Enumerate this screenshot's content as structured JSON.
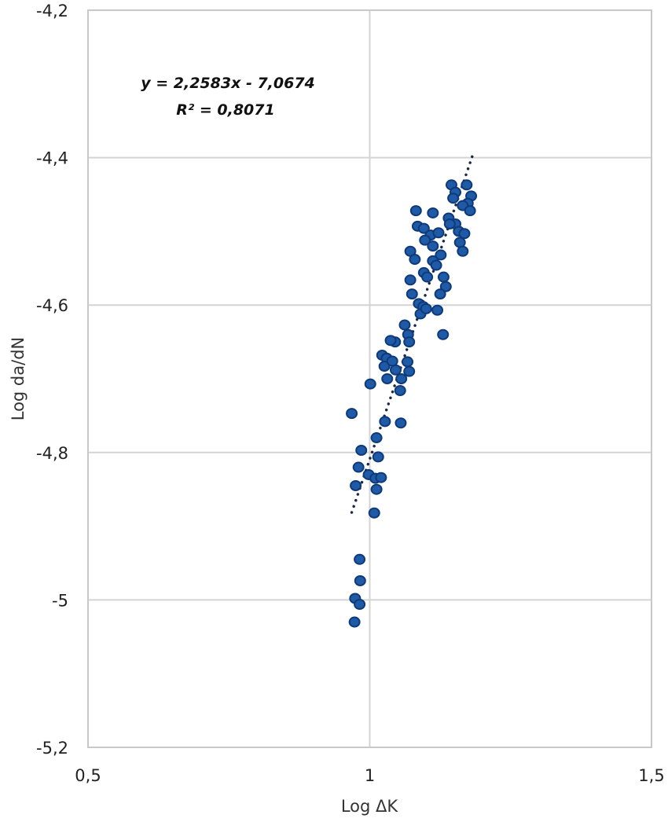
{
  "chart_data": {
    "type": "scatter",
    "title": "",
    "xlabel": "Log ΔK",
    "ylabel": "Log da/dN",
    "xlim": [
      0.5,
      1.5
    ],
    "ylim": [
      -5.2,
      -4.2
    ],
    "x_ticks": [
      0.5,
      1,
      1.5
    ],
    "x_tick_labels": [
      "0,5",
      "1",
      "1,5"
    ],
    "y_ticks": [
      -4.2,
      -4.4,
      -4.6,
      -4.8,
      -5,
      -5.2
    ],
    "y_tick_labels": [
      "-4,2",
      "-4,4",
      "-4,6",
      "-4,8",
      "-5",
      "-5,2"
    ],
    "grid": true,
    "legend": null,
    "marker_color": "#0f3a7a",
    "marker_color_light": "#1f5aa6",
    "trendline": {
      "type": "linear",
      "slope": 2.2583,
      "intercept": -7.0674,
      "r_squared": 0.8071,
      "x_range": [
        0.968,
        1.182
      ],
      "style": "dotted",
      "color": "#1b2a44",
      "equation_label": "y = 2,2583x - 7,0674",
      "r2_label": "R² = 0,8071"
    },
    "series": [
      {
        "name": "Log da/dN",
        "points": [
          [
            1.145,
            -4.437
          ],
          [
            1.152,
            -4.447
          ],
          [
            1.148,
            -4.455
          ],
          [
            1.172,
            -4.437
          ],
          [
            1.18,
            -4.452
          ],
          [
            1.174,
            -4.462
          ],
          [
            1.165,
            -4.465
          ],
          [
            1.178,
            -4.472
          ],
          [
            1.14,
            -4.482
          ],
          [
            1.152,
            -4.49
          ],
          [
            1.158,
            -4.5
          ],
          [
            1.168,
            -4.503
          ],
          [
            1.16,
            -4.515
          ],
          [
            1.165,
            -4.527
          ],
          [
            1.142,
            -4.49
          ],
          [
            1.082,
            -4.472
          ],
          [
            1.112,
            -4.475
          ],
          [
            1.085,
            -4.493
          ],
          [
            1.096,
            -4.496
          ],
          [
            1.108,
            -4.505
          ],
          [
            1.098,
            -4.512
          ],
          [
            1.122,
            -4.502
          ],
          [
            1.112,
            -4.52
          ],
          [
            1.126,
            -4.532
          ],
          [
            1.112,
            -4.54
          ],
          [
            1.118,
            -4.546
          ],
          [
            1.131,
            -4.562
          ],
          [
            1.072,
            -4.527
          ],
          [
            1.08,
            -4.538
          ],
          [
            1.096,
            -4.556
          ],
          [
            1.102,
            -4.562
          ],
          [
            1.135,
            -4.575
          ],
          [
            1.125,
            -4.585
          ],
          [
            1.072,
            -4.566
          ],
          [
            1.075,
            -4.585
          ],
          [
            1.087,
            -4.598
          ],
          [
            1.095,
            -4.602
          ],
          [
            1.09,
            -4.612
          ],
          [
            1.1,
            -4.605
          ],
          [
            1.12,
            -4.607
          ],
          [
            1.13,
            -4.64
          ],
          [
            1.062,
            -4.627
          ],
          [
            1.068,
            -4.64
          ],
          [
            1.07,
            -4.65
          ],
          [
            1.045,
            -4.65
          ],
          [
            1.037,
            -4.648
          ],
          [
            1.022,
            -4.668
          ],
          [
            1.03,
            -4.672
          ],
          [
            1.026,
            -4.683
          ],
          [
            1.04,
            -4.676
          ],
          [
            1.046,
            -4.688
          ],
          [
            1.067,
            -4.677
          ],
          [
            1.07,
            -4.69
          ],
          [
            1.056,
            -4.7
          ],
          [
            1.031,
            -4.7
          ],
          [
            1.054,
            -4.716
          ],
          [
            1.001,
            -4.707
          ],
          [
            1.055,
            -4.76
          ],
          [
            1.027,
            -4.758
          ],
          [
            0.968,
            -4.747
          ],
          [
            1.012,
            -4.78
          ],
          [
            0.985,
            -4.797
          ],
          [
            1.015,
            -4.806
          ],
          [
            0.98,
            -4.82
          ],
          [
            0.998,
            -4.83
          ],
          [
            1.01,
            -4.835
          ],
          [
            1.02,
            -4.834
          ],
          [
            0.975,
            -4.845
          ],
          [
            1.012,
            -4.85
          ],
          [
            1.008,
            -4.882
          ],
          [
            0.982,
            -4.945
          ],
          [
            0.983,
            -4.974
          ],
          [
            0.974,
            -4.998
          ],
          [
            0.982,
            -5.006
          ],
          [
            0.973,
            -5.03
          ]
        ]
      }
    ]
  }
}
